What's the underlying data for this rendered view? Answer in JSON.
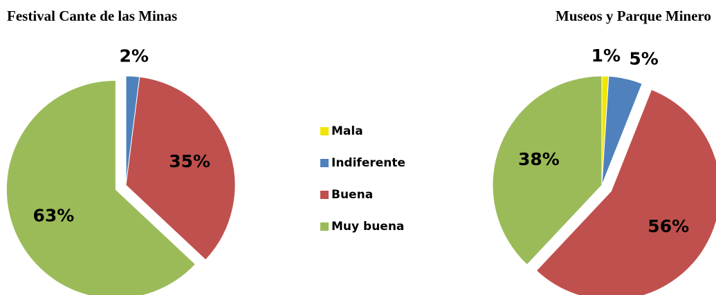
{
  "chart_data": [
    {
      "type": "pie",
      "title": "Festival Cante de las Minas",
      "categories": [
        "Indiferente",
        "Buena",
        "Muy buena"
      ],
      "values": [
        2,
        35,
        63
      ],
      "value_labels": [
        "2%",
        "35%",
        "63%"
      ],
      "colors": [
        "#4f81bd",
        "#c0504d",
        "#9bbb59"
      ],
      "exploded": "Muy buena"
    },
    {
      "type": "pie",
      "title": "Museos y Parque Minero",
      "categories": [
        "Mala",
        "Indiferente",
        "Buena",
        "Muy buena"
      ],
      "values": [
        1,
        5,
        56,
        38
      ],
      "value_labels": [
        "1%",
        "5%",
        "56%",
        "38%"
      ],
      "colors": [
        "#f2e600",
        "#4f81bd",
        "#c0504d",
        "#9bbb59"
      ],
      "exploded": "Buena"
    }
  ]
}
